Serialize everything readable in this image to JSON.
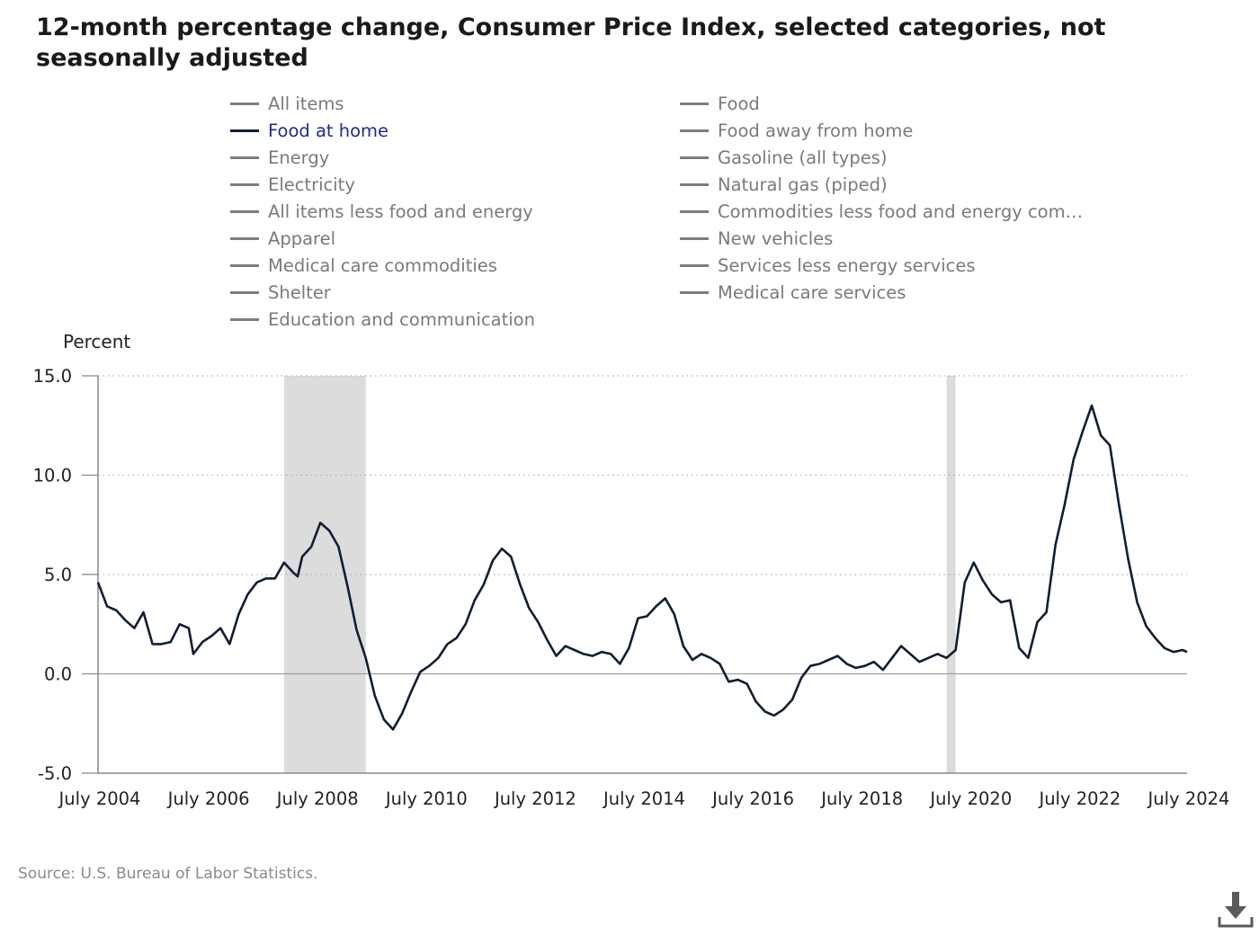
{
  "title": "12-month percentage change, Consumer Price Index, selected categories, not seasonally adjusted",
  "legend": [
    {
      "label": "All items",
      "active": false
    },
    {
      "label": "Food",
      "active": false
    },
    {
      "label": "Food at home",
      "active": true
    },
    {
      "label": "Food away from home",
      "active": false
    },
    {
      "label": "Energy",
      "active": false
    },
    {
      "label": "Gasoline (all types)",
      "active": false
    },
    {
      "label": "Electricity",
      "active": false
    },
    {
      "label": "Natural gas (piped)",
      "active": false
    },
    {
      "label": "All items less food and energy",
      "active": false
    },
    {
      "label": "Commodities less food and energy com…",
      "active": false
    },
    {
      "label": "Apparel",
      "active": false
    },
    {
      "label": "New vehicles",
      "active": false
    },
    {
      "label": "Medical care commodities",
      "active": false
    },
    {
      "label": "Services less energy services",
      "active": false
    },
    {
      "label": "Shelter",
      "active": false
    },
    {
      "label": "Medical care services",
      "active": false
    },
    {
      "label": "Education and communication",
      "active": false
    }
  ],
  "y_unit": "Percent",
  "source": "Source: U.S. Bureau of Labor Statistics.",
  "icons": {
    "download": "download-icon"
  },
  "colors": {
    "series": "#0f1e33",
    "recession": "#dcdcdc",
    "grid": "#b0b0b0",
    "axis": "#888888"
  },
  "chart_data": {
    "type": "line",
    "title": "12-month percentage change, Consumer Price Index, selected categories, not seasonally adjusted",
    "ylabel": "Percent",
    "ylim": [
      -5,
      15
    ],
    "yticks": [
      15,
      10,
      5,
      0,
      -5
    ],
    "ytick_labels": [
      "15.0",
      "10.0",
      "5.0",
      "0.0",
      "-5.0"
    ],
    "xlim": [
      "2004-07",
      "2024-07"
    ],
    "xticks": [
      "2004-07",
      "2006-07",
      "2008-07",
      "2010-07",
      "2012-07",
      "2014-07",
      "2016-07",
      "2018-07",
      "2020-07",
      "2022-07",
      "2024-07"
    ],
    "xtick_labels": [
      "July 2004",
      "July 2006",
      "July 2008",
      "July 2010",
      "July 2012",
      "July 2014",
      "July 2016",
      "July 2018",
      "July 2020",
      "July 2022",
      "July 2024"
    ],
    "grid": "horizontal dotted",
    "recessions": [
      [
        "2007-12",
        "2009-06"
      ],
      [
        "2020-02",
        "2020-04"
      ]
    ],
    "series": [
      {
        "legend_entry": "Food at home",
        "points": [
          [
            "2004-07",
            4.6
          ],
          [
            "2004-09",
            3.4
          ],
          [
            "2004-11",
            3.2
          ],
          [
            "2005-01",
            2.7
          ],
          [
            "2005-03",
            2.3
          ],
          [
            "2005-05",
            3.1
          ],
          [
            "2005-07",
            1.5
          ],
          [
            "2005-09",
            1.5
          ],
          [
            "2005-11",
            1.6
          ],
          [
            "2006-01",
            2.5
          ],
          [
            "2006-03",
            2.3
          ],
          [
            "2006-04",
            1.0
          ],
          [
            "2006-06",
            1.6
          ],
          [
            "2006-08",
            1.9
          ],
          [
            "2006-10",
            2.3
          ],
          [
            "2006-12",
            1.5
          ],
          [
            "2007-02",
            3.0
          ],
          [
            "2007-04",
            4.0
          ],
          [
            "2007-06",
            4.6
          ],
          [
            "2007-08",
            4.8
          ],
          [
            "2007-10",
            4.8
          ],
          [
            "2007-12",
            5.6
          ],
          [
            "2008-02",
            5.1
          ],
          [
            "2008-03",
            4.9
          ],
          [
            "2008-04",
            5.9
          ],
          [
            "2008-06",
            6.4
          ],
          [
            "2008-08",
            7.6
          ],
          [
            "2008-10",
            7.2
          ],
          [
            "2008-12",
            6.4
          ],
          [
            "2009-02",
            4.4
          ],
          [
            "2009-04",
            2.2
          ],
          [
            "2009-06",
            0.8
          ],
          [
            "2009-08",
            -1.1
          ],
          [
            "2009-10",
            -2.3
          ],
          [
            "2009-12",
            -2.8
          ],
          [
            "2010-02",
            -2.0
          ],
          [
            "2010-04",
            -0.9
          ],
          [
            "2010-06",
            0.1
          ],
          [
            "2010-08",
            0.4
          ],
          [
            "2010-10",
            0.8
          ],
          [
            "2010-12",
            1.5
          ],
          [
            "2011-02",
            1.8
          ],
          [
            "2011-04",
            2.5
          ],
          [
            "2011-06",
            3.7
          ],
          [
            "2011-08",
            4.5
          ],
          [
            "2011-10",
            5.7
          ],
          [
            "2011-12",
            6.3
          ],
          [
            "2012-02",
            5.9
          ],
          [
            "2012-04",
            4.5
          ],
          [
            "2012-06",
            3.3
          ],
          [
            "2012-08",
            2.6
          ],
          [
            "2012-10",
            1.7
          ],
          [
            "2012-12",
            0.9
          ],
          [
            "2013-02",
            1.4
          ],
          [
            "2013-04",
            1.2
          ],
          [
            "2013-06",
            1.0
          ],
          [
            "2013-08",
            0.9
          ],
          [
            "2013-10",
            1.1
          ],
          [
            "2013-12",
            1.0
          ],
          [
            "2014-02",
            0.5
          ],
          [
            "2014-04",
            1.3
          ],
          [
            "2014-06",
            2.8
          ],
          [
            "2014-08",
            2.9
          ],
          [
            "2014-10",
            3.4
          ],
          [
            "2014-12",
            3.8
          ],
          [
            "2015-02",
            3.0
          ],
          [
            "2015-04",
            1.4
          ],
          [
            "2015-06",
            0.7
          ],
          [
            "2015-08",
            1.0
          ],
          [
            "2015-10",
            0.8
          ],
          [
            "2015-12",
            0.5
          ],
          [
            "2016-02",
            -0.4
          ],
          [
            "2016-04",
            -0.3
          ],
          [
            "2016-06",
            -0.5
          ],
          [
            "2016-08",
            -1.4
          ],
          [
            "2016-10",
            -1.9
          ],
          [
            "2016-12",
            -2.1
          ],
          [
            "2017-02",
            -1.8
          ],
          [
            "2017-04",
            -1.3
          ],
          [
            "2017-06",
            -0.2
          ],
          [
            "2017-08",
            0.4
          ],
          [
            "2017-10",
            0.5
          ],
          [
            "2017-12",
            0.7
          ],
          [
            "2018-02",
            0.9
          ],
          [
            "2018-04",
            0.5
          ],
          [
            "2018-06",
            0.3
          ],
          [
            "2018-08",
            0.4
          ],
          [
            "2018-10",
            0.6
          ],
          [
            "2018-12",
            0.2
          ],
          [
            "2019-02",
            0.8
          ],
          [
            "2019-04",
            1.4
          ],
          [
            "2019-06",
            1.0
          ],
          [
            "2019-08",
            0.6
          ],
          [
            "2019-10",
            0.8
          ],
          [
            "2019-12",
            1.0
          ],
          [
            "2020-02",
            0.8
          ],
          [
            "2020-04",
            1.2
          ],
          [
            "2020-06",
            4.6
          ],
          [
            "2020-08",
            5.6
          ],
          [
            "2020-10",
            4.7
          ],
          [
            "2020-12",
            4.0
          ],
          [
            "2021-02",
            3.6
          ],
          [
            "2021-04",
            3.7
          ],
          [
            "2021-06",
            1.3
          ],
          [
            "2021-08",
            0.8
          ],
          [
            "2021-10",
            2.6
          ],
          [
            "2021-12",
            3.1
          ],
          [
            "2022-02",
            6.5
          ],
          [
            "2022-04",
            8.5
          ],
          [
            "2022-06",
            10.8
          ],
          [
            "2022-08",
            12.2
          ],
          [
            "2022-10",
            13.5
          ],
          [
            "2022-12",
            12.0
          ],
          [
            "2023-02",
            11.5
          ],
          [
            "2023-04",
            8.5
          ],
          [
            "2023-06",
            5.8
          ],
          [
            "2023-08",
            3.6
          ],
          [
            "2023-10",
            2.4
          ],
          [
            "2023-12",
            1.8
          ],
          [
            "2024-02",
            1.3
          ],
          [
            "2024-04",
            1.1
          ],
          [
            "2024-06",
            1.2
          ],
          [
            "2024-07",
            1.1
          ]
        ]
      }
    ]
  }
}
